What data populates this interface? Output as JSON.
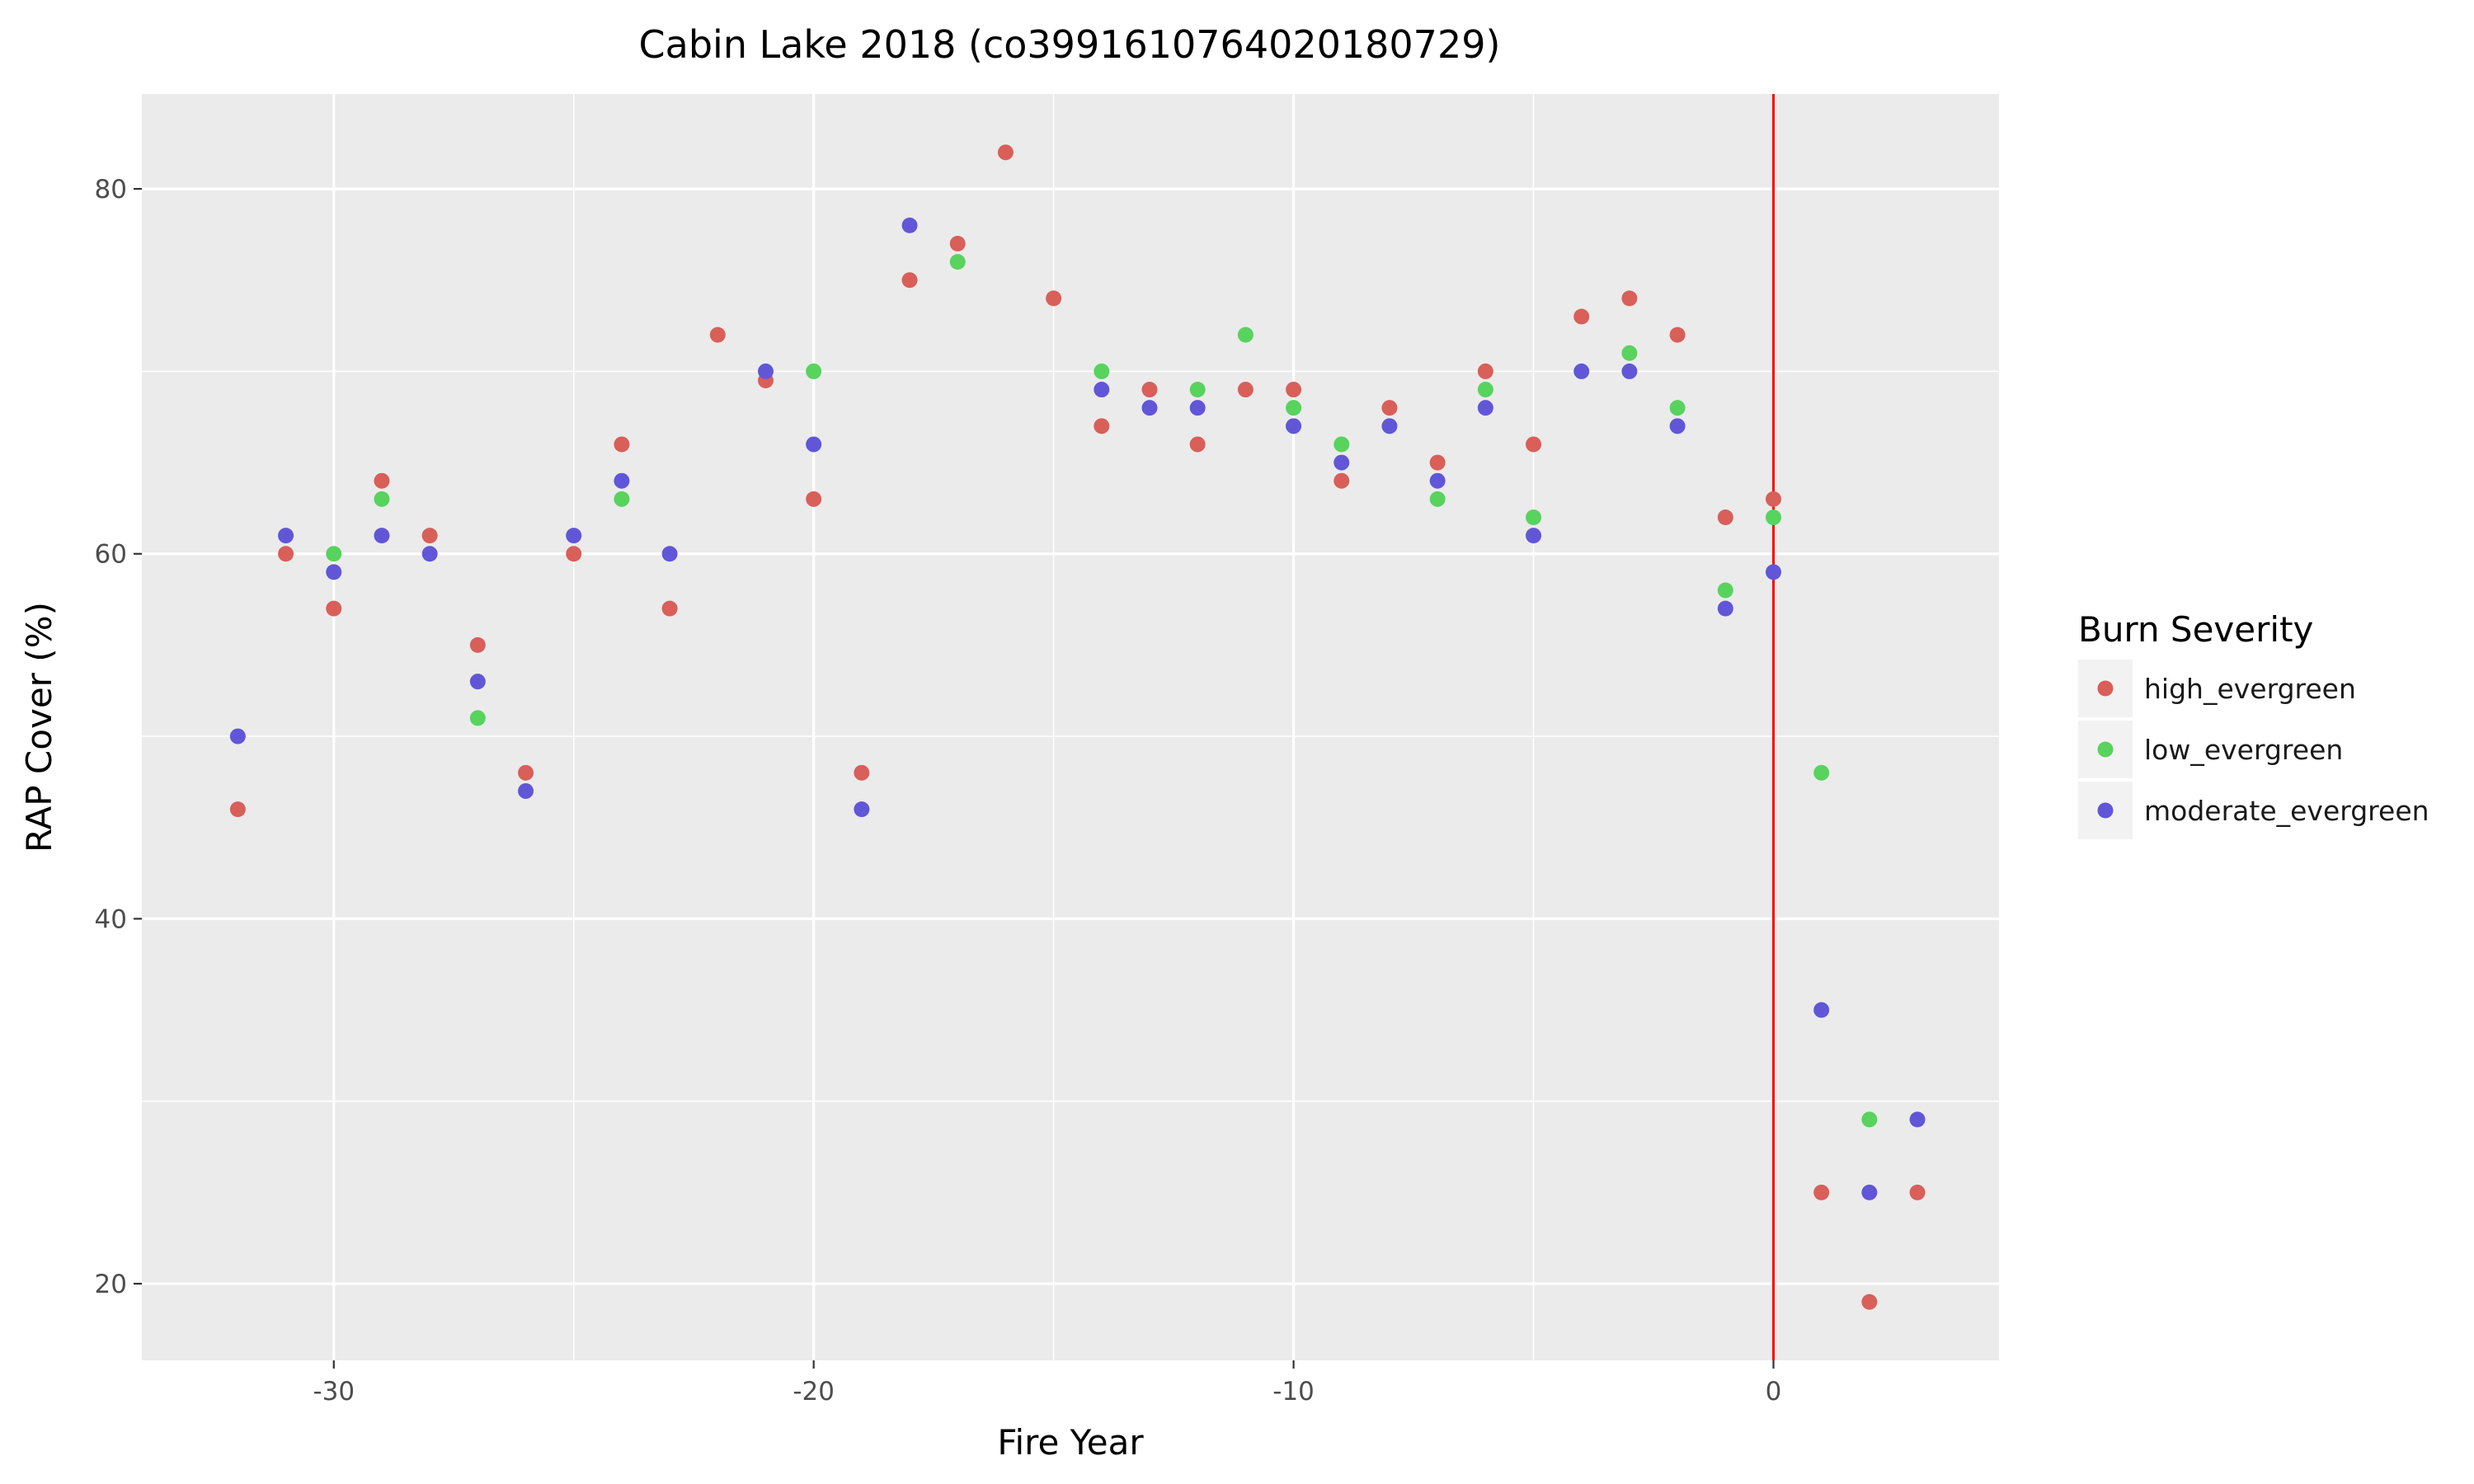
{
  "chart_data": {
    "type": "scatter",
    "title": "Cabin Lake 2018 (co39916107640201807​29)",
    "xlabel": "Fire Year",
    "ylabel": "RAP Cover (%)",
    "xlim": [
      -34,
      4.7
    ],
    "ylim": [
      15.8,
      85.2
    ],
    "x_ticks": [
      -30,
      -20,
      -10,
      0
    ],
    "y_ticks": [
      20,
      40,
      60,
      80
    ],
    "x_tick_labels": [
      "-30",
      "-20",
      "-10",
      "0"
    ],
    "y_tick_labels": [
      "20",
      "40",
      "60",
      "80"
    ],
    "grid": true,
    "vline": {
      "x": 0,
      "color": "#ff0000"
    },
    "legend": {
      "title": "Burn Severity",
      "position": "right"
    },
    "series": [
      {
        "name": "high_evergreen",
        "color": "#d95f59",
        "x": [
          -32,
          -31,
          -30,
          -29,
          -28,
          -27,
          -26,
          -25,
          -24,
          -23,
          -22,
          -21,
          -20,
          -19,
          -18,
          -17,
          -16,
          -15,
          -14,
          -13,
          -12,
          -11,
          -10,
          -9,
          -8,
          -7,
          -6,
          -5,
          -4,
          -3,
          -2,
          -1,
          0,
          1,
          2,
          3
        ],
        "y": [
          46,
          60,
          57,
          64,
          61,
          55,
          48,
          60,
          66,
          57,
          72,
          69.5,
          63,
          48,
          75,
          77,
          82,
          74,
          67,
          69,
          66,
          69,
          69,
          64,
          68,
          65,
          70,
          66,
          73,
          74,
          72,
          62,
          63,
          25,
          19,
          25
        ]
      },
      {
        "name": "low_evergreen",
        "color": "#58d35e",
        "x": [
          -30,
          -29,
          -27,
          -24,
          -20,
          -17,
          -14,
          -12,
          -11,
          -10,
          -9,
          -7,
          -6,
          -5,
          -3,
          -2,
          -1,
          0,
          1,
          2
        ],
        "y": [
          60,
          63,
          51,
          63,
          70,
          76,
          70,
          69,
          72,
          68,
          66,
          63,
          69,
          62,
          71,
          68,
          58,
          62,
          48,
          29
        ]
      },
      {
        "name": "moderate_evergreen",
        "color": "#6156d8",
        "x": [
          -32,
          -31,
          -30,
          -29,
          -28,
          -27,
          -26,
          -25,
          -24,
          -23,
          -21,
          -20,
          -19,
          -18,
          -14,
          -13,
          -12,
          -10,
          -9,
          -8,
          -7,
          -6,
          -5,
          -4,
          -3,
          -2,
          -1,
          0,
          1,
          2,
          3
        ],
        "y": [
          50,
          61,
          59,
          61,
          60,
          53,
          47,
          61,
          64,
          60,
          70,
          66,
          46,
          78,
          69,
          68,
          68,
          67,
          65,
          67,
          64,
          68,
          61,
          70,
          70,
          67,
          57,
          59,
          35,
          25,
          29
        ]
      }
    ]
  }
}
